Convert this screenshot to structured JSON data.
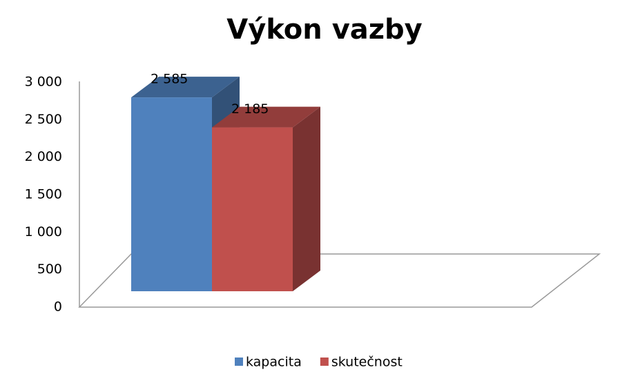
{
  "chart_data": {
    "type": "bar3d",
    "title": "Výkon vazby",
    "categories": [
      null
    ],
    "series": [
      {
        "name": "kapacita",
        "color": "#4f81bd",
        "values": [
          2585
        ],
        "value_labels": [
          "2 585"
        ]
      },
      {
        "name": "skutečnost",
        "color": "#c0504d",
        "values": [
          2185
        ],
        "value_labels": [
          "2 185"
        ]
      }
    ],
    "ylim": [
      0,
      3000
    ],
    "yticks": [
      0,
      500,
      {
        "value": 1000,
        "label": "1 000"
      },
      {
        "value": 1500,
        "label": "1 500"
      },
      {
        "value": 2000,
        "label": "2 000"
      },
      {
        "value": 2500,
        "label": "2 500"
      },
      {
        "value": 3000,
        "label": "3 000"
      }
    ],
    "legend": "bottom"
  }
}
